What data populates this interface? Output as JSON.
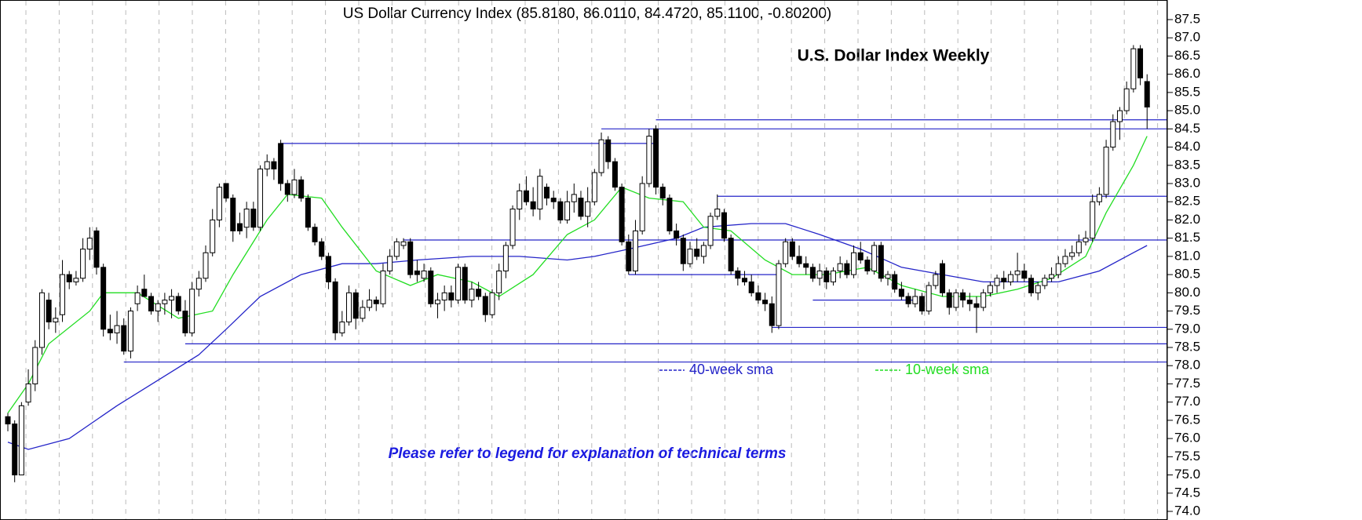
{
  "chart_data": {
    "type": "candlestick",
    "title": "US Dollar Currency Index (85.8180, 86.0110, 84.4720, 85.1100, -0.80200)",
    "heading": "U.S. Dollar Index Weekly",
    "note": "Please refer to legend for explanation of technical terms",
    "up_color": "#ffffff",
    "down_color": "#000000",
    "level_color": "#2424c8",
    "ylim": [
      74,
      87.5
    ],
    "yticks": [
      87.5,
      {
        "value": 87,
        "label": "87.0"
      },
      86.5,
      {
        "value": 86,
        "label": "86.0"
      },
      85.5,
      {
        "value": 85,
        "label": "85.0"
      },
      84.5,
      {
        "value": 84,
        "label": "84.0"
      },
      83.5,
      {
        "value": 83,
        "label": "83.0"
      },
      82.5,
      {
        "value": 82,
        "label": "82.0"
      },
      81.5,
      {
        "value": 81,
        "label": "81.0"
      },
      80.5,
      {
        "value": 80,
        "label": "80.0"
      },
      79.5,
      {
        "value": 79,
        "label": "79.0"
      },
      78.5,
      {
        "value": 78,
        "label": "78.0"
      },
      77.5,
      {
        "value": 77,
        "label": "77.0"
      },
      76.5,
      {
        "value": 76,
        "label": "76.0"
      },
      75.5,
      {
        "value": 75,
        "label": "75.0"
      },
      74.5,
      {
        "value": 74,
        "label": "74.0"
      }
    ],
    "open": [
      76.6,
      76.4,
      75.0,
      77.0,
      77.5,
      78.5,
      79.8,
      79.2,
      79.4,
      80.5,
      80.3,
      80.4,
      81.2,
      81.7,
      80.7,
      79.0,
      78.9,
      79.1,
      78.4,
      79.7,
      80.1,
      79.9,
      79.5,
      79.7,
      79.8,
      79.9,
      79.5,
      78.9,
      80.1,
      80.4,
      81.1,
      82.0,
      83.0,
      82.6,
      81.9,
      81.8,
      82.3,
      81.8,
      83.4,
      83.6,
      84.1,
      83.0,
      82.7,
      83.1,
      82.6,
      81.8,
      81.4,
      81.0,
      80.3,
      78.9,
      79.2,
      80.0,
      79.3,
      79.6,
      79.8,
      79.7,
      80.6,
      81.0,
      81.3,
      81.4,
      80.6,
      80.4,
      80.6,
      79.7,
      79.8,
      80.0,
      79.8,
      80.7,
      79.8,
      80.1,
      79.9,
      79.4,
      80.0,
      80.6,
      81.3,
      82.3,
      82.8,
      82.5,
      82.3,
      82.9,
      82.6,
      82.5,
      82.0,
      82.5,
      82.6,
      82.1,
      82.5,
      83.3,
      84.2,
      83.6,
      82.9,
      81.4,
      80.6,
      81.7,
      83.0,
      84.5,
      82.9,
      82.6,
      81.7,
      81.5,
      80.8,
      81.2,
      81.0,
      81.3,
      82.1,
      82.2,
      81.5,
      80.6,
      80.4,
      80.3,
      80.0,
      79.8,
      79.7,
      79.1,
      80.8,
      81.4,
      81.0,
      80.8,
      80.7,
      80.4,
      80.6,
      80.3,
      80.6,
      80.8,
      80.5,
      81.1,
      80.9,
      80.6,
      81.3,
      80.4,
      80.5,
      80.1,
      79.9,
      79.7,
      79.9,
      79.5,
      80.2,
      80.8,
      80.0,
      79.6,
      80.0,
      79.8,
      79.7,
      79.6,
      80.0,
      80.2,
      80.4,
      80.3,
      80.5,
      80.6,
      80.4,
      80.0,
      80.2,
      80.4,
      80.5,
      80.8,
      81.0,
      81.1,
      81.4,
      81.5,
      82.5,
      82.7,
      84.0,
      84.7,
      85.0,
      85.6,
      86.7,
      85.8
    ],
    "high": [
      76.7,
      76.5,
      77.0,
      77.9,
      78.7,
      80.1,
      80.0,
      79.6,
      80.9,
      80.6,
      80.6,
      81.5,
      81.8,
      81.8,
      80.8,
      79.4,
      79.5,
      79.3,
      79.6,
      80.2,
      80.5,
      80.0,
      79.8,
      80.0,
      80.1,
      80.0,
      79.8,
      80.3,
      80.6,
      81.3,
      82.3,
      83.0,
      83.0,
      82.7,
      82.2,
      82.5,
      82.5,
      83.5,
      83.8,
      83.7,
      84.2,
      83.1,
      83.4,
      83.2,
      82.7,
      81.9,
      81.5,
      81.1,
      80.4,
      79.5,
      80.2,
      80.1,
      79.8,
      80.1,
      79.9,
      80.8,
      81.2,
      81.5,
      81.5,
      81.5,
      80.9,
      80.8,
      80.7,
      80.0,
      80.2,
      80.2,
      80.8,
      80.8,
      80.3,
      80.3,
      80.0,
      80.1,
      80.8,
      81.4,
      82.4,
      83.0,
      83.2,
      82.9,
      83.4,
      83.0,
      82.8,
      82.6,
      82.8,
      83.0,
      82.8,
      82.9,
      83.4,
      84.4,
      84.3,
      83.7,
      83.0,
      81.6,
      82.0,
      83.2,
      84.5,
      84.6,
      83.0,
      82.7,
      81.9,
      81.6,
      81.4,
      81.5,
      81.4,
      82.2,
      82.7,
      82.3,
      81.6,
      80.7,
      80.6,
      80.5,
      80.2,
      80.0,
      79.9,
      80.9,
      81.5,
      81.5,
      81.3,
      81.0,
      80.8,
      80.8,
      80.7,
      80.7,
      81.0,
      80.9,
      81.3,
      81.4,
      81.0,
      81.4,
      81.4,
      80.6,
      80.6,
      80.3,
      80.0,
      80.1,
      80.0,
      80.3,
      80.6,
      80.9,
      80.1,
      80.1,
      80.1,
      80.0,
      79.9,
      80.1,
      80.3,
      80.5,
      80.6,
      80.6,
      81.1,
      80.8,
      80.5,
      80.3,
      80.5,
      80.7,
      81.0,
      81.2,
      81.3,
      81.6,
      81.7,
      82.7,
      82.9,
      84.2,
      84.9,
      85.1,
      85.8,
      86.8,
      86.8,
      86.0
    ],
    "low": [
      76.2,
      74.8,
      75.0,
      76.9,
      77.3,
      78.3,
      79.0,
      78.9,
      79.2,
      80.1,
      80.2,
      80.3,
      80.9,
      80.5,
      78.8,
      78.7,
      78.6,
      78.3,
      78.2,
      79.5,
      79.9,
      79.4,
      79.2,
      79.4,
      79.3,
      79.4,
      78.8,
      78.8,
      79.9,
      80.3,
      81.0,
      81.8,
      82.5,
      81.4,
      81.6,
      81.5,
      81.7,
      81.7,
      83.2,
      83.1,
      82.8,
      82.5,
      82.6,
      82.5,
      81.7,
      81.3,
      80.9,
      80.1,
      78.7,
      78.8,
      79.1,
      79.0,
      79.2,
      79.5,
      79.5,
      79.6,
      80.5,
      80.9,
      81.2,
      80.4,
      80.3,
      80.3,
      79.6,
      79.3,
      79.5,
      79.6,
      79.7,
      79.7,
      79.6,
      79.8,
      79.2,
      79.3,
      79.8,
      80.4,
      81.2,
      82.0,
      82.4,
      82.1,
      82.0,
      82.4,
      82.3,
      81.9,
      81.9,
      82.2,
      82.0,
      81.8,
      82.4,
      83.2,
      83.4,
      82.8,
      81.3,
      80.5,
      80.5,
      81.6,
      82.9,
      82.7,
      82.4,
      81.6,
      81.3,
      80.6,
      80.7,
      80.9,
      80.8,
      81.2,
      82.0,
      81.4,
      80.5,
      80.2,
      80.2,
      79.9,
      79.7,
      79.5,
      78.9,
      79.0,
      80.7,
      80.9,
      80.7,
      80.5,
      80.3,
      80.2,
      80.1,
      80.2,
      80.4,
      80.4,
      80.4,
      80.8,
      80.5,
      80.5,
      80.3,
      80.2,
      80.0,
      79.8,
      79.6,
      79.6,
      79.4,
      79.4,
      80.1,
      79.9,
      79.4,
      79.5,
      79.6,
      79.5,
      78.9,
      79.5,
      79.9,
      80.0,
      80.1,
      80.2,
      80.3,
      80.3,
      79.9,
      79.8,
      80.1,
      80.3,
      80.4,
      80.7,
      80.9,
      81.0,
      81.3,
      81.4,
      82.4,
      82.6,
      83.9,
      84.2,
      84.9,
      85.5,
      85.7,
      84.5
    ],
    "close": [
      76.4,
      75.0,
      76.9,
      77.5,
      78.5,
      80.0,
      79.2,
      79.3,
      80.5,
      80.3,
      80.4,
      81.2,
      81.5,
      80.7,
      79.0,
      78.9,
      79.1,
      78.4,
      79.5,
      80.0,
      79.9,
      79.5,
      79.7,
      79.8,
      79.9,
      79.5,
      78.9,
      80.1,
      80.4,
      81.1,
      82.0,
      82.9,
      82.6,
      81.7,
      81.7,
      82.3,
      81.8,
      83.4,
      83.6,
      83.4,
      83.0,
      82.7,
      83.1,
      82.6,
      81.8,
      81.4,
      81.0,
      80.3,
      78.9,
      79.2,
      80.0,
      79.3,
      79.6,
      79.8,
      79.7,
      80.6,
      81.0,
      81.4,
      81.4,
      80.5,
      80.5,
      80.6,
      79.7,
      79.8,
      80.0,
      79.8,
      80.7,
      79.8,
      80.1,
      79.9,
      79.4,
      80.0,
      80.6,
      81.3,
      82.3,
      82.8,
      82.5,
      82.3,
      83.2,
      82.6,
      82.5,
      82.0,
      82.5,
      82.7,
      82.1,
      82.5,
      83.3,
      84.2,
      83.6,
      82.9,
      81.4,
      80.6,
      81.7,
      83.0,
      84.3,
      82.9,
      82.6,
      81.7,
      81.5,
      80.8,
      81.2,
      81.0,
      81.3,
      82.1,
      82.3,
      81.5,
      80.6,
      80.4,
      80.3,
      80.0,
      79.8,
      79.7,
      79.1,
      80.8,
      81.4,
      81.0,
      80.8,
      80.7,
      80.4,
      80.6,
      80.3,
      80.6,
      80.8,
      80.5,
      81.1,
      80.9,
      80.6,
      81.3,
      80.4,
      80.5,
      80.1,
      79.9,
      79.7,
      79.9,
      79.5,
      80.2,
      80.5,
      80.0,
      79.6,
      80.0,
      79.8,
      79.7,
      79.6,
      80.0,
      80.2,
      80.4,
      80.3,
      80.5,
      80.6,
      80.4,
      80.0,
      80.2,
      80.4,
      80.5,
      80.8,
      81.0,
      81.1,
      81.4,
      81.5,
      82.5,
      82.7,
      84.0,
      84.7,
      85.0,
      85.6,
      86.7,
      85.9,
      85.1
    ],
    "series": [
      {
        "name": "40-week sma",
        "color": "#2424c8",
        "x": [
          0,
          3,
          9,
          16,
          22,
          28,
          32,
          37,
          43,
          49,
          54,
          60,
          68,
          75,
          82,
          86,
          91,
          98,
          102,
          109,
          114,
          119,
          125,
          131,
          137,
          143,
          148,
          154,
          160,
          165,
          167
        ],
        "values": [
          75.9,
          75.7,
          76.0,
          76.9,
          77.6,
          78.3,
          79.0,
          79.9,
          80.5,
          80.8,
          80.8,
          80.9,
          81.0,
          81.0,
          80.9,
          81.0,
          81.2,
          81.5,
          81.8,
          81.9,
          81.9,
          81.6,
          81.2,
          80.7,
          80.5,
          80.3,
          80.3,
          80.3,
          80.6,
          81.1,
          81.3
        ]
      },
      {
        "name": "10-week sma",
        "color": "#22dd22",
        "x": [
          0,
          3,
          6,
          12,
          14,
          19,
          25,
          30,
          33,
          38,
          41,
          46,
          49,
          54,
          59,
          63,
          68,
          72,
          77,
          82,
          86,
          90,
          94,
          99,
          102,
          106,
          111,
          115,
          120,
          126,
          131,
          137,
          143,
          148,
          153,
          158,
          161,
          165,
          167
        ],
        "values": [
          76.7,
          77.5,
          78.6,
          79.5,
          80.0,
          80.0,
          79.3,
          79.5,
          80.5,
          82.0,
          82.7,
          82.6,
          81.8,
          80.6,
          80.2,
          80.5,
          80.3,
          79.9,
          80.5,
          81.6,
          82.0,
          82.9,
          82.6,
          82.5,
          81.8,
          81.7,
          80.9,
          80.5,
          80.5,
          80.7,
          80.2,
          79.9,
          79.9,
          80.1,
          80.4,
          81.0,
          82.2,
          83.5,
          84.3
        ]
      }
    ],
    "levels": [
      {
        "value": 84.1,
        "start": 40,
        "end": 95
      },
      {
        "value": 84.5,
        "start": 87,
        "end": 170
      },
      {
        "value": 84.75,
        "start": 95,
        "end": 170
      },
      {
        "value": 82.65,
        "start": 104,
        "end": 170
      },
      {
        "value": 81.45,
        "start": 58,
        "end": 170
      },
      {
        "value": 80.5,
        "start": 91,
        "end": 113
      },
      {
        "value": 79.8,
        "start": 118,
        "end": 133
      },
      {
        "value": 79.05,
        "start": 112,
        "end": 170
      },
      {
        "value": 78.6,
        "start": 26,
        "end": 170
      },
      {
        "value": 78.1,
        "start": 17,
        "end": 170
      }
    ]
  }
}
